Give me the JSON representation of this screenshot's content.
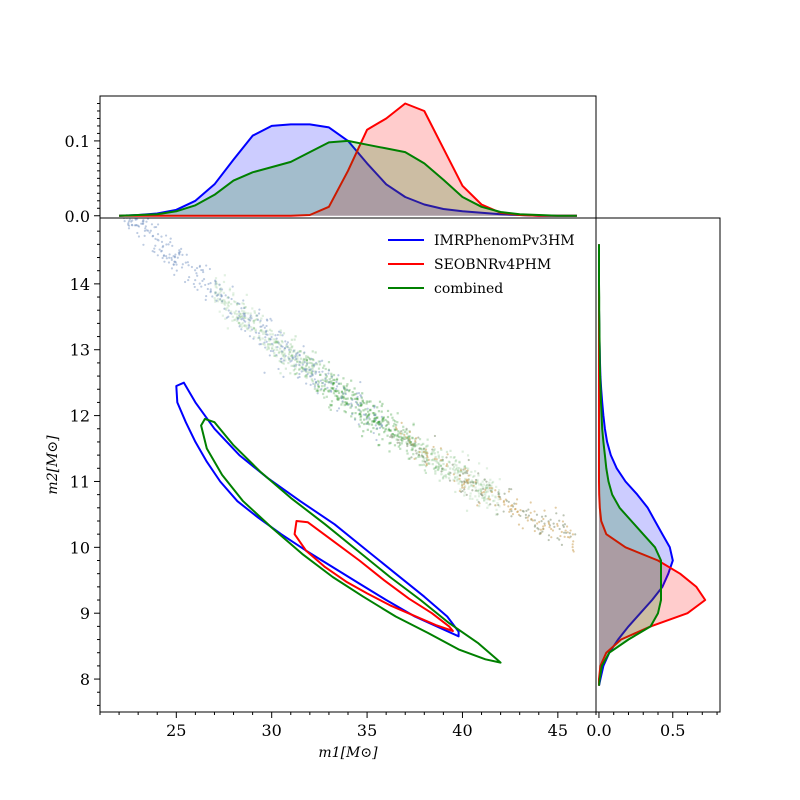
{
  "chart_data": [
    {
      "type": "scatter",
      "panel": "joint",
      "xlabel": "m1[M⊙]",
      "ylabel": "m2[M⊙]",
      "xlim": [
        21,
        47
      ],
      "ylim": [
        7.5,
        15.0
      ],
      "xticks": [
        25,
        30,
        35,
        40,
        45
      ],
      "yticks": [
        8,
        9,
        10,
        11,
        12,
        13,
        14
      ],
      "legend": {
        "position": "top-right",
        "entries": [
          "IMRPhenomPv3HM",
          "SEOBNRv4PHM",
          "combined"
        ]
      },
      "series": [
        {
          "name": "IMRPhenomPv3HM",
          "color": "#0000ff",
          "contour": [
            [
              25.4,
              12.5
            ],
            [
              25.0,
              12.45
            ],
            [
              25.05,
              12.2
            ],
            [
              25.5,
              11.9
            ],
            [
              26.0,
              11.6
            ],
            [
              26.6,
              11.3
            ],
            [
              27.3,
              11.0
            ],
            [
              28.2,
              10.7
            ],
            [
              29.3,
              10.45
            ],
            [
              30.5,
              10.2
            ],
            [
              31.8,
              9.95
            ],
            [
              33.2,
              9.7
            ],
            [
              34.6,
              9.45
            ],
            [
              36.0,
              9.2
            ],
            [
              37.5,
              8.95
            ],
            [
              38.8,
              8.78
            ],
            [
              39.8,
              8.65
            ],
            [
              39.8,
              8.72
            ],
            [
              39.2,
              8.95
            ],
            [
              38.0,
              9.25
            ],
            [
              36.5,
              9.6
            ],
            [
              35.0,
              9.95
            ],
            [
              33.3,
              10.35
            ],
            [
              31.5,
              10.7
            ],
            [
              29.8,
              11.05
            ],
            [
              28.3,
              11.4
            ],
            [
              27.0,
              11.8
            ],
            [
              26.0,
              12.2
            ],
            [
              25.4,
              12.5
            ]
          ]
        },
        {
          "name": "SEOBNRv4PHM",
          "color": "#ff0000",
          "contour": [
            [
              31.3,
              10.4
            ],
            [
              31.2,
              10.2
            ],
            [
              31.8,
              9.95
            ],
            [
              32.8,
              9.7
            ],
            [
              33.9,
              9.48
            ],
            [
              35.0,
              9.3
            ],
            [
              36.2,
              9.12
            ],
            [
              37.4,
              8.97
            ],
            [
              38.6,
              8.82
            ],
            [
              39.5,
              8.73
            ],
            [
              39.3,
              8.8
            ],
            [
              38.4,
              9.0
            ],
            [
              37.2,
              9.22
            ],
            [
              35.9,
              9.5
            ],
            [
              34.6,
              9.8
            ],
            [
              33.2,
              10.1
            ],
            [
              31.9,
              10.38
            ],
            [
              31.3,
              10.4
            ]
          ]
        },
        {
          "name": "combined",
          "color": "#008000",
          "contour": [
            [
              26.5,
              11.95
            ],
            [
              26.3,
              11.85
            ],
            [
              26.6,
              11.5
            ],
            [
              27.4,
              11.1
            ],
            [
              28.5,
              10.7
            ],
            [
              30.0,
              10.3
            ],
            [
              31.6,
              9.9
            ],
            [
              33.2,
              9.55
            ],
            [
              34.8,
              9.25
            ],
            [
              36.5,
              8.95
            ],
            [
              38.2,
              8.7
            ],
            [
              39.8,
              8.45
            ],
            [
              41.2,
              8.3
            ],
            [
              42.0,
              8.25
            ],
            [
              41.8,
              8.3
            ],
            [
              40.8,
              8.55
            ],
            [
              39.3,
              8.85
            ],
            [
              37.8,
              9.2
            ],
            [
              36.2,
              9.55
            ],
            [
              34.5,
              9.95
            ],
            [
              32.8,
              10.35
            ],
            [
              31.0,
              10.75
            ],
            [
              29.4,
              11.15
            ],
            [
              28.0,
              11.55
            ],
            [
              27.0,
              11.9
            ],
            [
              26.5,
              11.95
            ]
          ]
        }
      ]
    },
    {
      "type": "area",
      "panel": "top-marginal",
      "ylim": [
        -0.003,
        0.16
      ],
      "yticks": [
        0.0,
        0.1
      ],
      "x": [
        22,
        23,
        24,
        25,
        26,
        27,
        28,
        29,
        30,
        31,
        32,
        33,
        34,
        35,
        36,
        37,
        38,
        39,
        40,
        41,
        42,
        43,
        44,
        45,
        46
      ],
      "series": [
        {
          "name": "IMRPhenomPv3HM",
          "color": "#0000ff",
          "values": [
            0.0,
            0.001,
            0.003,
            0.008,
            0.02,
            0.042,
            0.075,
            0.107,
            0.12,
            0.122,
            0.122,
            0.118,
            0.1,
            0.07,
            0.042,
            0.025,
            0.015,
            0.009,
            0.006,
            0.004,
            0.002,
            0.001,
            0.0,
            0.0,
            0.0
          ]
        },
        {
          "name": "SEOBNRv4PHM",
          "color": "#ff0000",
          "values": [
            0.0,
            0.0,
            0.0,
            0.0,
            0.0,
            0.0,
            0.0,
            0.0,
            0.0,
            0.0,
            0.001,
            0.012,
            0.06,
            0.115,
            0.13,
            0.15,
            0.14,
            0.09,
            0.04,
            0.015,
            0.004,
            0.001,
            0.0,
            0.0,
            0.0
          ]
        },
        {
          "name": "combined",
          "color": "#008000",
          "values": [
            0.0,
            0.001,
            0.002,
            0.006,
            0.014,
            0.028,
            0.047,
            0.058,
            0.065,
            0.072,
            0.085,
            0.098,
            0.1,
            0.095,
            0.09,
            0.085,
            0.07,
            0.048,
            0.025,
            0.012,
            0.005,
            0.002,
            0.001,
            0.0,
            0.0
          ]
        }
      ]
    },
    {
      "type": "area",
      "panel": "right-marginal",
      "xlim": [
        -0.02,
        0.82
      ],
      "xticks": [
        0.0,
        0.5
      ],
      "y": [
        7.9,
        8.0,
        8.2,
        8.4,
        8.6,
        8.8,
        9.0,
        9.2,
        9.4,
        9.6,
        9.8,
        10.0,
        10.2,
        10.4,
        10.6,
        10.8,
        11.0,
        11.2,
        11.4,
        11.6,
        11.8,
        12.0,
        12.2,
        12.4,
        12.6,
        12.8,
        13.0,
        13.2,
        13.4,
        13.6,
        13.8,
        14.0,
        14.2,
        14.4,
        14.6
      ],
      "series": [
        {
          "name": "IMRPhenomPv3HM",
          "color": "#0000ff",
          "values": [
            0.0,
            0.01,
            0.03,
            0.07,
            0.13,
            0.2,
            0.28,
            0.36,
            0.43,
            0.47,
            0.5,
            0.48,
            0.43,
            0.38,
            0.33,
            0.26,
            0.18,
            0.12,
            0.08,
            0.055,
            0.04,
            0.03,
            0.022,
            0.015,
            0.01,
            0.007,
            0.005,
            0.003,
            0.002,
            0.0,
            0.0,
            0.0,
            0.0,
            0.0,
            0.0
          ]
        },
        {
          "name": "SEOBNRv4PHM",
          "color": "#ff0000",
          "values": [
            0.0,
            0.0,
            0.01,
            0.05,
            0.15,
            0.35,
            0.6,
            0.72,
            0.66,
            0.55,
            0.4,
            0.18,
            0.05,
            0.015,
            0.006,
            0.002,
            0.0,
            0.0,
            0.0,
            0.0,
            0.0,
            0.0,
            0.0,
            0.0,
            0.0,
            0.0,
            0.0,
            0.0,
            0.0,
            0.0,
            0.0,
            0.0,
            0.0,
            0.0,
            0.0
          ]
        },
        {
          "name": "combined",
          "color": "#008000",
          "values": [
            0.0,
            0.005,
            0.02,
            0.07,
            0.2,
            0.35,
            0.4,
            0.42,
            0.42,
            0.42,
            0.42,
            0.38,
            0.3,
            0.22,
            0.14,
            0.09,
            0.065,
            0.05,
            0.04,
            0.03,
            0.022,
            0.018,
            0.014,
            0.011,
            0.008,
            0.006,
            0.005,
            0.004,
            0.003,
            0.002,
            0.002,
            0.0,
            0.0,
            0.0,
            0.0
          ]
        }
      ]
    }
  ]
}
